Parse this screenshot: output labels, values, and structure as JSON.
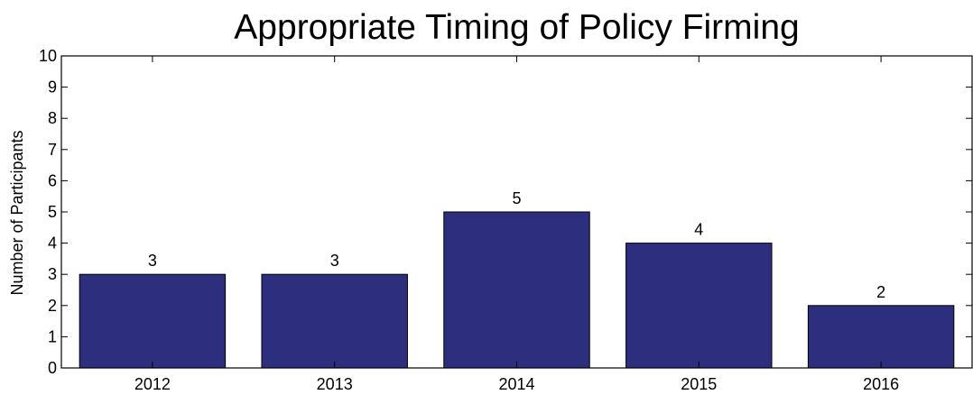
{
  "chart_data": {
    "type": "bar",
    "title": "Appropriate Timing of Policy Firming",
    "xlabel": "",
    "ylabel": "Number of Participants",
    "categories": [
      "2012",
      "2013",
      "2014",
      "2015",
      "2016"
    ],
    "values": [
      3,
      3,
      5,
      4,
      2
    ],
    "data_labels": [
      "3",
      "3",
      "5",
      "4",
      "2"
    ],
    "ylim": [
      0,
      10
    ],
    "yticks": [
      0,
      1,
      2,
      3,
      4,
      5,
      6,
      7,
      8,
      9,
      10
    ],
    "grid": false,
    "legend": "none",
    "bar_color": "#2e2e7e",
    "bar_edge_color": "#000000"
  }
}
